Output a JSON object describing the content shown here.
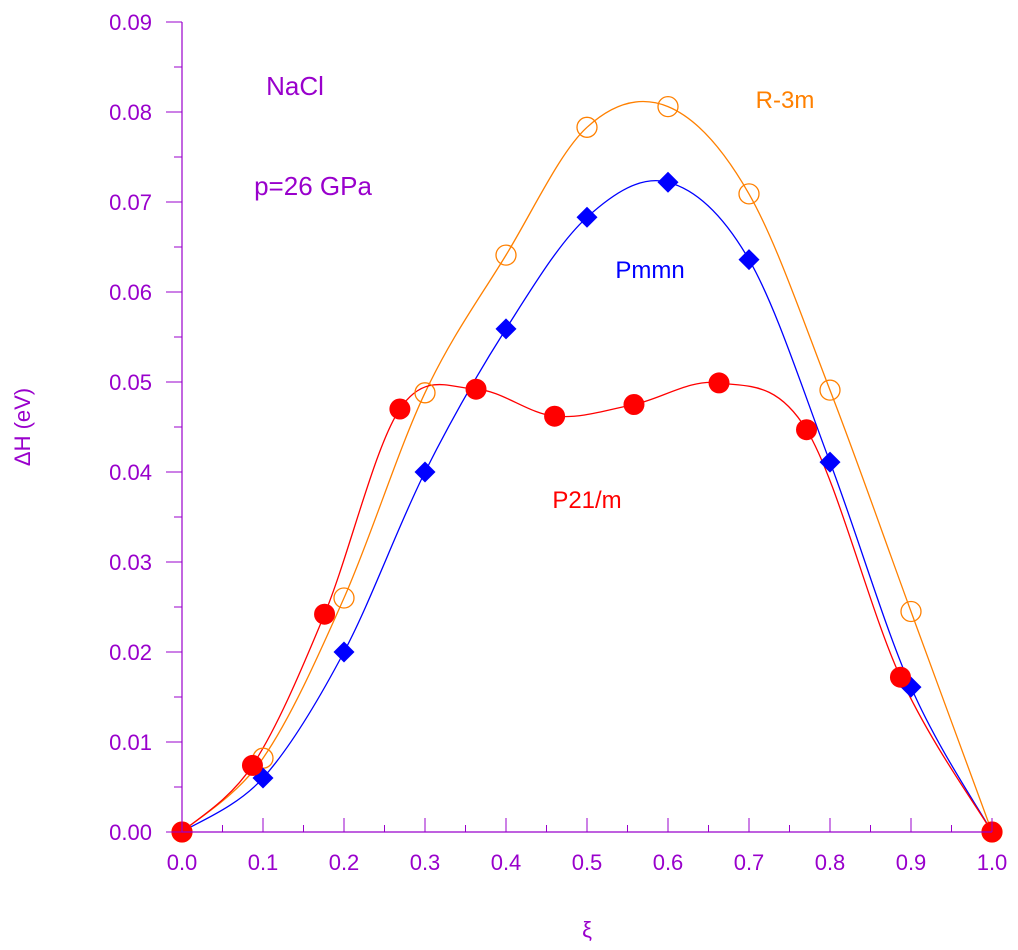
{
  "colors": {
    "axis": "#9900cc",
    "background": "#ffffff"
  },
  "chart_data": {
    "type": "line",
    "xlabel": "ξ",
    "ylabel": "ΔH (eV)",
    "xlim": [
      0.0,
      1.0
    ],
    "ylim": [
      0.0,
      0.09
    ],
    "x_ticks": [
      "0.0",
      "0.1",
      "0.2",
      "0.3",
      "0.4",
      "0.5",
      "0.6",
      "0.7",
      "0.8",
      "0.9",
      "1.0"
    ],
    "y_ticks": [
      "0.00",
      "0.01",
      "0.02",
      "0.03",
      "0.04",
      "0.05",
      "0.06",
      "0.07",
      "0.08",
      "0.09"
    ],
    "grid": false,
    "annotations": [
      {
        "text": "NaCl",
        "color": "#9900cc"
      },
      {
        "text": "p=26 GPa",
        "color": "#9900cc"
      }
    ],
    "series": [
      {
        "name": "R-3m",
        "color": "#ff8000",
        "marker": "open-circle",
        "x": [
          0.0,
          0.1,
          0.2,
          0.3,
          0.4,
          0.5,
          0.6,
          0.7,
          0.8,
          0.9,
          1.0
        ],
        "y": [
          0.0,
          0.0082,
          0.026,
          0.0488,
          0.0641,
          0.0783,
          0.0806,
          0.0709,
          0.0491,
          0.0245,
          0.0
        ]
      },
      {
        "name": "Pmmn",
        "color": "#0000ff",
        "marker": "filled-diamond",
        "x": [
          0.0,
          0.1,
          0.2,
          0.3,
          0.4,
          0.5,
          0.6,
          0.7,
          0.8,
          0.9,
          1.0
        ],
        "y": [
          0.0,
          0.006,
          0.02,
          0.04,
          0.0559,
          0.0683,
          0.0722,
          0.0636,
          0.0411,
          0.0161,
          0.0
        ]
      },
      {
        "name": "P21/m",
        "color": "#ff0000",
        "marker": "filled-circle",
        "x": [
          0.0,
          0.087,
          0.176,
          0.269,
          0.363,
          0.46,
          0.558,
          0.663,
          0.771,
          0.887,
          1.0
        ],
        "y": [
          0.0,
          0.0074,
          0.0242,
          0.047,
          0.0492,
          0.0462,
          0.0475,
          0.0499,
          0.0447,
          0.0172,
          0.0
        ]
      }
    ]
  }
}
